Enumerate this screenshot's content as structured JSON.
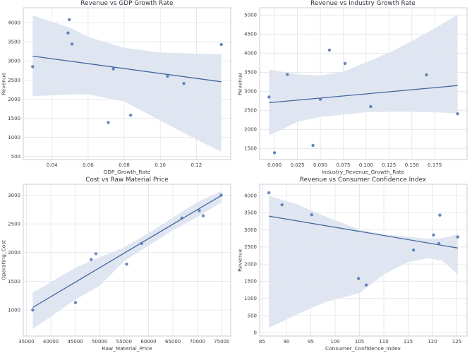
{
  "style": {
    "background": "#ffffff",
    "accent": "#4c72b0",
    "point_color": "#4c72b0",
    "point_opacity": 0.85,
    "point_radius": 2.2,
    "line_color": "#44689e",
    "line_width": 1.3,
    "band_opacity": 0.18,
    "grid_color": "#e2e4ea",
    "spine_color": "#c9cdd6",
    "tick_color": "#3c4047",
    "tick_font_size": 7
  },
  "chart_data": [
    {
      "type": "scatter",
      "title": "Revenue vs GDP Growth Rate",
      "xlabel": "GDP_Growth_Rate",
      "ylabel": "Revenue",
      "xlim": [
        0.0241,
        0.139
      ],
      "ylim": [
        420,
        4390
      ],
      "xticks": [
        0.04,
        0.06,
        0.08,
        0.1,
        0.12
      ],
      "xtick_labels": [
        "0.04",
        "0.06",
        "0.08",
        "0.10",
        "0.12"
      ],
      "yticks": [
        500,
        1000,
        1500,
        2000,
        2500,
        3000,
        3500,
        4000
      ],
      "ytick_labels": [
        "500",
        "1000",
        "1500",
        "2000",
        "2500",
        "3000",
        "3500",
        "4000"
      ],
      "grid": true,
      "legend": "none",
      "points": [
        [
          0.0293,
          2850
        ],
        [
          0.0496,
          4080
        ],
        [
          0.0489,
          3730
        ],
        [
          0.0511,
          3440
        ],
        [
          0.0712,
          1390
        ],
        [
          0.074,
          2790
        ],
        [
          0.0836,
          1580
        ],
        [
          0.104,
          2600
        ],
        [
          0.113,
          2410
        ],
        [
          0.1338,
          3430
        ]
      ],
      "reg_line": [
        [
          0.0293,
          3125
        ],
        [
          0.1338,
          2455
        ]
      ],
      "ci_band": [
        [
          0.0293,
          2075,
          4190
        ],
        [
          0.05,
          2125,
          3870
        ],
        [
          0.06,
          2125,
          3630
        ],
        [
          0.08,
          1940,
          3345
        ],
        [
          0.1,
          1440,
          3220
        ],
        [
          0.12,
          940,
          3190
        ],
        [
          0.1338,
          625,
          3175
        ]
      ]
    },
    {
      "type": "scatter",
      "title": "Revenue vs Industry Growth Rate",
      "xlabel": "Industry_Revenue_Growth_Rate",
      "ylabel": "Revenue",
      "xlim": [
        -0.0163,
        0.2103
      ],
      "ylim": [
        1210,
        5190
      ],
      "xticks": [
        0.0,
        0.025,
        0.05,
        0.075,
        0.1,
        0.125,
        0.15,
        0.175
      ],
      "xtick_labels": [
        "0.000",
        "0.025",
        "0.050",
        "0.075",
        "0.100",
        "0.125",
        "0.150",
        "0.175"
      ],
      "yticks": [
        1500,
        2000,
        2500,
        3000,
        3500,
        4000,
        4500,
        5000
      ],
      "ytick_labels": [
        "1500",
        "2000",
        "2500",
        "3000",
        "3500",
        "4000",
        "4500",
        "5000"
      ],
      "grid": true,
      "legend": "none",
      "points": [
        [
          -0.006,
          2850
        ],
        [
          0.0,
          1390
        ],
        [
          0.014,
          3440
        ],
        [
          0.042,
          1580
        ],
        [
          0.05,
          2790
        ],
        [
          0.06,
          4080
        ],
        [
          0.077,
          3730
        ],
        [
          0.105,
          2600
        ],
        [
          0.166,
          3430
        ],
        [
          0.2,
          2410
        ]
      ],
      "reg_line": [
        [
          -0.006,
          2700
        ],
        [
          0.2,
          3150
        ]
      ],
      "ci_band": [
        [
          -0.006,
          1840,
          3570
        ],
        [
          0.025,
          2200,
          3445
        ],
        [
          0.05,
          2325,
          3415
        ],
        [
          0.075,
          2390,
          3510
        ],
        [
          0.1,
          2450,
          3760
        ],
        [
          0.125,
          2465,
          4010
        ],
        [
          0.15,
          2465,
          4320
        ],
        [
          0.175,
          2450,
          4650
        ],
        [
          0.2,
          2420,
          5010
        ]
      ]
    },
    {
      "type": "scatter",
      "title": "Cost vs Raw Material Price",
      "xlabel": "Raw_Material_Price",
      "ylabel": "Operating_Cost",
      "xlim": [
        34370,
        76830
      ],
      "ylim": [
        547,
        3190
      ],
      "xticks": [
        35000,
        40000,
        45000,
        50000,
        55000,
        60000,
        65000,
        70000,
        75000
      ],
      "xtick_labels": [
        "35000",
        "40000",
        "45000",
        "50000",
        "55000",
        "60000",
        "65000",
        "70000",
        "75000"
      ],
      "yticks": [
        1000,
        1500,
        2000,
        2500,
        3000
      ],
      "ytick_labels": [
        "1000",
        "1500",
        "2000",
        "2500",
        "3000"
      ],
      "grid": true,
      "legend": "none",
      "points": [
        [
          36300,
          1000
        ],
        [
          45050,
          1130
        ],
        [
          48270,
          1880
        ],
        [
          49240,
          1980
        ],
        [
          55530,
          1800
        ],
        [
          58570,
          2160
        ],
        [
          66830,
          2600
        ],
        [
          70400,
          2730
        ],
        [
          71200,
          2640
        ],
        [
          74900,
          3000
        ]
      ],
      "reg_line": [
        [
          36300,
          1045
        ],
        [
          74900,
          2995
        ]
      ],
      "ci_band": [
        [
          36300,
          667,
          1304
        ],
        [
          45000,
          1180,
          1735
        ],
        [
          50000,
          1420,
          1920
        ],
        [
          55000,
          1850,
          2090
        ],
        [
          60000,
          2120,
          2340
        ],
        [
          65000,
          2390,
          2610
        ],
        [
          70000,
          2620,
          2880
        ],
        [
          74900,
          2870,
          3070
        ]
      ]
    },
    {
      "type": "scatter",
      "title": "Revenue vs Consumer Confidence Index",
      "xlabel": "Consumer_Confidence_Index",
      "ylabel": "Revenue",
      "xlim": [
        84.5,
        127.1
      ],
      "ylim": [
        -100,
        4330
      ],
      "xticks": [
        85,
        90,
        95,
        100,
        105,
        110,
        115,
        120,
        125
      ],
      "xtick_labels": [
        "85",
        "90",
        "95",
        "100",
        "105",
        "110",
        "115",
        "120",
        "125"
      ],
      "yticks": [
        0,
        500,
        1000,
        1500,
        2000,
        2500,
        3000,
        3500,
        4000
      ],
      "ytick_labels": [
        "0",
        "500",
        "1000",
        "1500",
        "2000",
        "2500",
        "3000",
        "3500",
        "4000"
      ],
      "grid": true,
      "legend": "none",
      "points": [
        [
          86.4,
          4080
        ],
        [
          89.1,
          3730
        ],
        [
          95.2,
          3440
        ],
        [
          104.8,
          1580
        ],
        [
          106.4,
          1390
        ],
        [
          116.1,
          2410
        ],
        [
          120.2,
          2850
        ],
        [
          121.5,
          3430
        ],
        [
          121.3,
          2600
        ],
        [
          125.2,
          2790
        ]
      ],
      "reg_line": [
        [
          86.4,
          3400
        ],
        [
          125.2,
          2470
        ]
      ],
      "ci_band": [
        [
          86.4,
          140,
          3990
        ],
        [
          92,
          520,
          3760
        ],
        [
          98,
          890,
          3390
        ],
        [
          105,
          1150,
          3010
        ],
        [
          110,
          1700,
          2870
        ],
        [
          115,
          2060,
          2800
        ],
        [
          119,
          2170,
          2740
        ],
        [
          122,
          2100,
          2760
        ],
        [
          125.2,
          1700,
          2870
        ]
      ]
    }
  ]
}
